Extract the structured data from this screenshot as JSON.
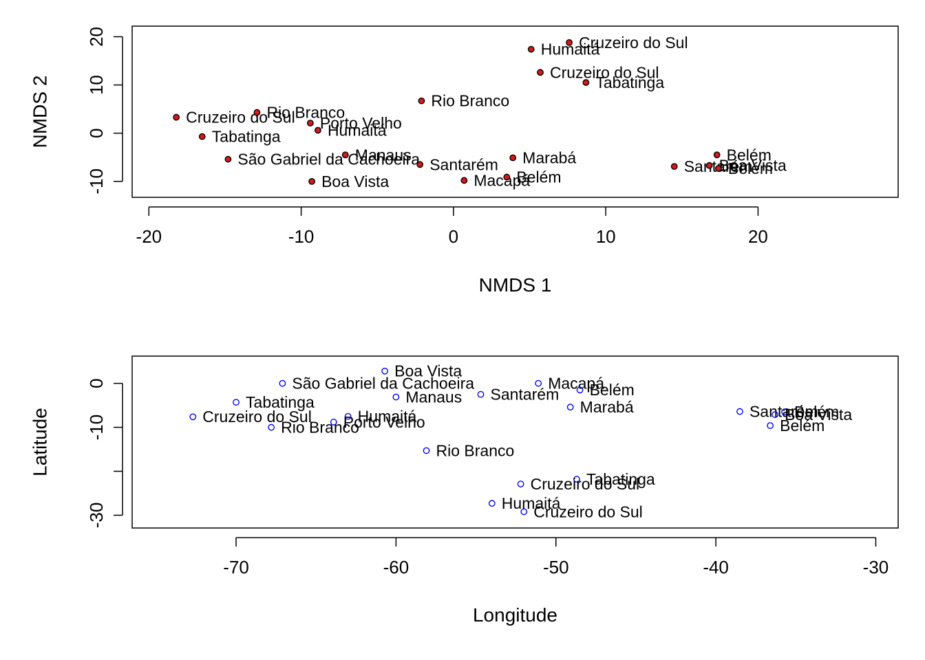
{
  "chart_data": [
    {
      "type": "scatter",
      "xlabel": "NMDS 1",
      "ylabel": "NMDS 2",
      "xlim": [
        -21.1,
        29.2
      ],
      "ylim": [
        -13.3,
        22.2
      ],
      "xticks": [
        -20,
        -10,
        0,
        10,
        20
      ],
      "yticks": [
        -10,
        0,
        10,
        20
      ],
      "marker": {
        "shape": "filled-circle",
        "fill": "#d7191c",
        "stroke": "#000000"
      },
      "points": [
        {
          "label": "Cruzeiro do Sul",
          "x": 7.6,
          "y": 18.8
        },
        {
          "label": "Humaitá",
          "x": 5.1,
          "y": 17.4
        },
        {
          "label": "Cruzeiro do Sul",
          "x": 5.7,
          "y": 12.6
        },
        {
          "label": "Tabatinga",
          "x": 8.7,
          "y": 10.5
        },
        {
          "label": "Rio Branco",
          "x": -2.1,
          "y": 6.7
        },
        {
          "label": "Cruzeiro do Sul",
          "x": -18.2,
          "y": 3.3
        },
        {
          "label": "Rio Branco",
          "x": -12.9,
          "y": 4.3
        },
        {
          "label": "Porto Velho",
          "x": -9.4,
          "y": 2.1
        },
        {
          "label": "Humaitá",
          "x": -8.9,
          "y": 0.6
        },
        {
          "label": "Tabatinga",
          "x": -16.5,
          "y": -0.7
        },
        {
          "label": "São Gabriel da Cachoeira",
          "x": -14.8,
          "y": -5.4
        },
        {
          "label": "Manaus",
          "x": -7.1,
          "y": -4.5
        },
        {
          "label": "Santarém",
          "x": -2.2,
          "y": -6.5
        },
        {
          "label": "Marabá",
          "x": 3.9,
          "y": -5.1
        },
        {
          "label": "Boa Vista",
          "x": -9.3,
          "y": -10.0
        },
        {
          "label": "Macapá",
          "x": 0.7,
          "y": -9.8
        },
        {
          "label": "Belém",
          "x": 3.5,
          "y": -9.1
        },
        {
          "label": "Belém",
          "x": 17.3,
          "y": -4.5
        },
        {
          "label": "Santarém",
          "x": 14.5,
          "y": -6.9
        },
        {
          "label": "Boa Vista",
          "x": 16.8,
          "y": -6.7
        },
        {
          "label": "Belém",
          "x": 17.4,
          "y": -7.3
        }
      ]
    },
    {
      "type": "scatter",
      "xlabel": "Longitude",
      "ylabel": "Latitude",
      "xlim": [
        -76.5,
        -28.6
      ],
      "ylim": [
        -32.9,
        6.2
      ],
      "xticks": [
        -70,
        -60,
        -50,
        -40,
        -30
      ],
      "yticks": [
        -30,
        -20,
        -10,
        0
      ],
      "ytick_labels": [
        "-30",
        "",
        "-10",
        "0"
      ],
      "marker": {
        "shape": "open-circle",
        "fill": "none",
        "stroke": "#0000ff"
      },
      "points": [
        {
          "label": "Boa Vista",
          "x": -60.7,
          "y": 2.8
        },
        {
          "label": "São Gabriel da Cachoeira",
          "x": -67.1,
          "y": 0.0
        },
        {
          "label": "Macapá",
          "x": -51.1,
          "y": 0.0
        },
        {
          "label": "Belém",
          "x": -48.5,
          "y": -1.5
        },
        {
          "label": "Manaus",
          "x": -60.0,
          "y": -3.1
        },
        {
          "label": "Santarém",
          "x": -54.7,
          "y": -2.5
        },
        {
          "label": "Tabatinga",
          "x": -70.0,
          "y": -4.3
        },
        {
          "label": "Marabá",
          "x": -49.1,
          "y": -5.4
        },
        {
          "label": "Cruzeiro do Sul",
          "x": -72.7,
          "y": -7.6
        },
        {
          "label": "Humaitá",
          "x": -63.0,
          "y": -7.5
        },
        {
          "label": "Porto Velho",
          "x": -63.9,
          "y": -8.8
        },
        {
          "label": "Rio Branco",
          "x": -67.8,
          "y": -10.0
        },
        {
          "label": "Rio Branco",
          "x": -58.1,
          "y": -15.3
        },
        {
          "label": "Tabatinga",
          "x": -48.7,
          "y": -21.8
        },
        {
          "label": "Cruzeiro do Sul",
          "x": -52.2,
          "y": -22.9
        },
        {
          "label": "Humaitá",
          "x": -54.0,
          "y": -27.3
        },
        {
          "label": "Cruzeiro do Sul",
          "x": -52.0,
          "y": -29.2
        },
        {
          "label": "Santarém",
          "x": -38.5,
          "y": -6.4
        },
        {
          "label": "Belém",
          "x": -35.7,
          "y": -6.5
        },
        {
          "label": "Boa Vista",
          "x": -36.3,
          "y": -7.1
        },
        {
          "label": "Belém",
          "x": -36.6,
          "y": -9.6
        }
      ]
    }
  ]
}
